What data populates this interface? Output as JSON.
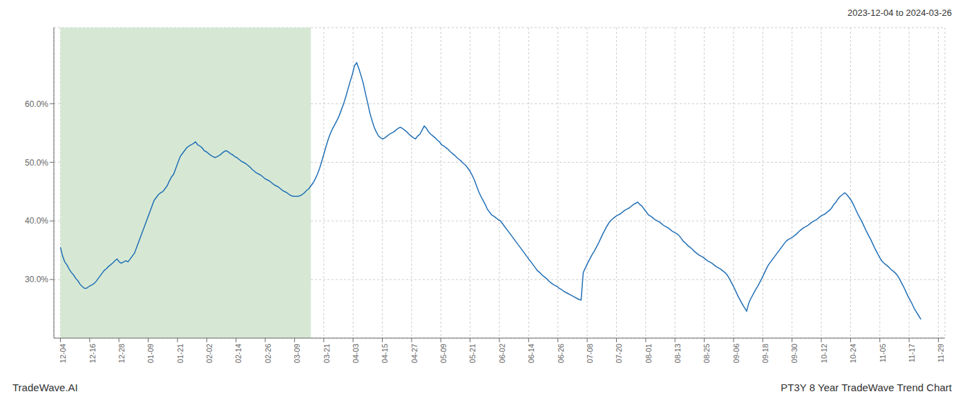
{
  "chart_data": {
    "type": "line",
    "title": "PT3Y 8 Year TradeWave Trend Chart",
    "subtitle": "2023-12-04 to 2024-03-26",
    "annotations": [
      "TradeWave.AI"
    ],
    "color": "#1f6eb5",
    "grid": true,
    "highlight": {
      "x": [
        0,
        115
      ],
      "color": "#d6e8d4"
    },
    "xlim": [
      -3,
      406
    ],
    "xticks": [
      {
        "value": 0,
        "label": "12-04"
      },
      {
        "value": 13.433333333333334,
        "label": "12-16"
      },
      {
        "value": 26.866666666666667,
        "label": "12-28"
      },
      {
        "value": 40.3,
        "label": "01-09"
      },
      {
        "value": 53.733333333333334,
        "label": "01-21"
      },
      {
        "value": 67.16666666666667,
        "label": "02-02"
      },
      {
        "value": 80.6,
        "label": "02-14"
      },
      {
        "value": 94.03333333333333,
        "label": "02-26"
      },
      {
        "value": 107.46666666666667,
        "label": "03-09"
      },
      {
        "value": 120.9,
        "label": "03-21"
      },
      {
        "value": 134.33333333333334,
        "label": "04-03"
      },
      {
        "value": 147.76666666666668,
        "label": "04-15"
      },
      {
        "value": 161.2,
        "label": "04-27"
      },
      {
        "value": 174.63333333333333,
        "label": "05-09"
      },
      {
        "value": 188.06666666666666,
        "label": "05-21"
      },
      {
        "value": 201.5,
        "label": "06-02"
      },
      {
        "value": 214.93333333333334,
        "label": "06-14"
      },
      {
        "value": 228.36666666666667,
        "label": "06-26"
      },
      {
        "value": 241.8,
        "label": "07-08"
      },
      {
        "value": 255.23333333333332,
        "label": "07-20"
      },
      {
        "value": 268.6666666666667,
        "label": "08-01"
      },
      {
        "value": 282.1,
        "label": "08-13"
      },
      {
        "value": 295.53333333333336,
        "label": "08-25"
      },
      {
        "value": 308.96666666666664,
        "label": "09-06"
      },
      {
        "value": 322.4,
        "label": "09-18"
      },
      {
        "value": 335.8333333333333,
        "label": "09-30"
      },
      {
        "value": 349.26666666666665,
        "label": "10-12"
      },
      {
        "value": 362.7,
        "label": "10-24"
      },
      {
        "value": 376.1333333333333,
        "label": "11-05"
      },
      {
        "value": 389.56666666666666,
        "label": "11-17"
      },
      {
        "value": 403,
        "label": "11-29"
      }
    ],
    "ylim": [
      0.2,
      0.73
    ],
    "yticks": [
      {
        "value": 0.3,
        "label": "30.0%"
      },
      {
        "value": 0.4,
        "label": "40.0%"
      },
      {
        "value": 0.5,
        "label": "50.0%"
      },
      {
        "value": 0.6,
        "label": "60.0%"
      }
    ],
    "values": [
      0.355,
      0.34,
      0.33,
      0.325,
      0.318,
      0.312,
      0.308,
      0.302,
      0.298,
      0.292,
      0.288,
      0.285,
      0.285,
      0.288,
      0.29,
      0.292,
      0.295,
      0.3,
      0.305,
      0.31,
      0.315,
      0.318,
      0.322,
      0.325,
      0.328,
      0.332,
      0.335,
      0.33,
      0.328,
      0.33,
      0.332,
      0.33,
      0.335,
      0.34,
      0.345,
      0.355,
      0.365,
      0.375,
      0.385,
      0.395,
      0.405,
      0.415,
      0.425,
      0.435,
      0.44,
      0.445,
      0.448,
      0.45,
      0.455,
      0.46,
      0.468,
      0.475,
      0.48,
      0.49,
      0.5,
      0.51,
      0.515,
      0.52,
      0.525,
      0.528,
      0.53,
      0.532,
      0.535,
      0.53,
      0.528,
      0.525,
      0.52,
      0.518,
      0.515,
      0.512,
      0.51,
      0.508,
      0.51,
      0.512,
      0.515,
      0.518,
      0.52,
      0.518,
      0.515,
      0.513,
      0.51,
      0.508,
      0.505,
      0.502,
      0.5,
      0.498,
      0.495,
      0.492,
      0.488,
      0.485,
      0.482,
      0.48,
      0.478,
      0.475,
      0.472,
      0.47,
      0.468,
      0.465,
      0.462,
      0.46,
      0.458,
      0.455,
      0.452,
      0.45,
      0.448,
      0.445,
      0.443,
      0.442,
      0.442,
      0.442,
      0.443,
      0.445,
      0.448,
      0.452,
      0.455,
      0.46,
      0.465,
      0.472,
      0.48,
      0.49,
      0.502,
      0.515,
      0.528,
      0.54,
      0.55,
      0.558,
      0.565,
      0.572,
      0.58,
      0.59,
      0.6,
      0.612,
      0.625,
      0.638,
      0.65,
      0.665,
      0.67,
      0.66,
      0.648,
      0.635,
      0.618,
      0.602,
      0.585,
      0.572,
      0.56,
      0.552,
      0.545,
      0.542,
      0.54,
      0.542,
      0.545,
      0.548,
      0.55,
      0.552,
      0.555,
      0.558,
      0.56,
      0.558,
      0.555,
      0.552,
      0.548,
      0.545,
      0.542,
      0.54,
      0.545,
      0.548,
      0.555,
      0.562,
      0.558,
      0.552,
      0.548,
      0.545,
      0.542,
      0.538,
      0.535,
      0.53,
      0.528,
      0.525,
      0.522,
      0.518,
      0.515,
      0.512,
      0.508,
      0.505,
      0.502,
      0.498,
      0.495,
      0.49,
      0.485,
      0.478,
      0.47,
      0.46,
      0.45,
      0.442,
      0.435,
      0.428,
      0.42,
      0.415,
      0.41,
      0.408,
      0.405,
      0.402,
      0.4,
      0.395,
      0.39,
      0.385,
      0.38,
      0.375,
      0.37,
      0.365,
      0.36,
      0.355,
      0.35,
      0.345,
      0.34,
      0.335,
      0.33,
      0.325,
      0.32,
      0.315,
      0.312,
      0.308,
      0.305,
      0.302,
      0.298,
      0.295,
      0.292,
      0.29,
      0.288,
      0.285,
      0.283,
      0.28,
      0.278,
      0.276,
      0.274,
      0.272,
      0.27,
      0.268,
      0.266,
      0.265,
      0.312,
      0.32,
      0.328,
      0.335,
      0.342,
      0.348,
      0.355,
      0.362,
      0.37,
      0.378,
      0.385,
      0.392,
      0.398,
      0.402,
      0.405,
      0.408,
      0.41,
      0.412,
      0.415,
      0.418,
      0.42,
      0.422,
      0.425,
      0.428,
      0.43,
      0.432,
      0.428,
      0.425,
      0.42,
      0.415,
      0.41,
      0.408,
      0.405,
      0.402,
      0.4,
      0.398,
      0.395,
      0.392,
      0.39,
      0.388,
      0.385,
      0.382,
      0.38,
      0.378,
      0.375,
      0.37,
      0.365,
      0.362,
      0.358,
      0.355,
      0.352,
      0.348,
      0.345,
      0.342,
      0.34,
      0.338,
      0.335,
      0.332,
      0.33,
      0.328,
      0.325,
      0.322,
      0.32,
      0.318,
      0.315,
      0.312,
      0.308,
      0.302,
      0.295,
      0.288,
      0.28,
      0.272,
      0.265,
      0.258,
      0.252,
      0.246,
      0.26,
      0.268,
      0.275,
      0.282,
      0.288,
      0.295,
      0.302,
      0.31,
      0.318,
      0.325,
      0.33,
      0.335,
      0.34,
      0.345,
      0.35,
      0.355,
      0.36,
      0.365,
      0.368,
      0.37,
      0.372,
      0.375,
      0.378,
      0.382,
      0.385,
      0.388,
      0.39,
      0.392,
      0.395,
      0.398,
      0.4,
      0.402,
      0.405,
      0.408,
      0.41,
      0.412,
      0.415,
      0.418,
      0.422,
      0.428,
      0.432,
      0.438,
      0.442,
      0.445,
      0.448,
      0.445,
      0.44,
      0.435,
      0.428,
      0.42,
      0.412,
      0.405,
      0.398,
      0.39,
      0.382,
      0.375,
      0.368,
      0.36,
      0.352,
      0.345,
      0.338,
      0.332,
      0.328,
      0.325,
      0.322,
      0.318,
      0.315,
      0.312,
      0.308,
      0.302,
      0.295,
      0.288,
      0.28,
      0.272,
      0.265,
      0.258,
      0.25,
      0.244,
      0.238,
      0.232
    ]
  }
}
